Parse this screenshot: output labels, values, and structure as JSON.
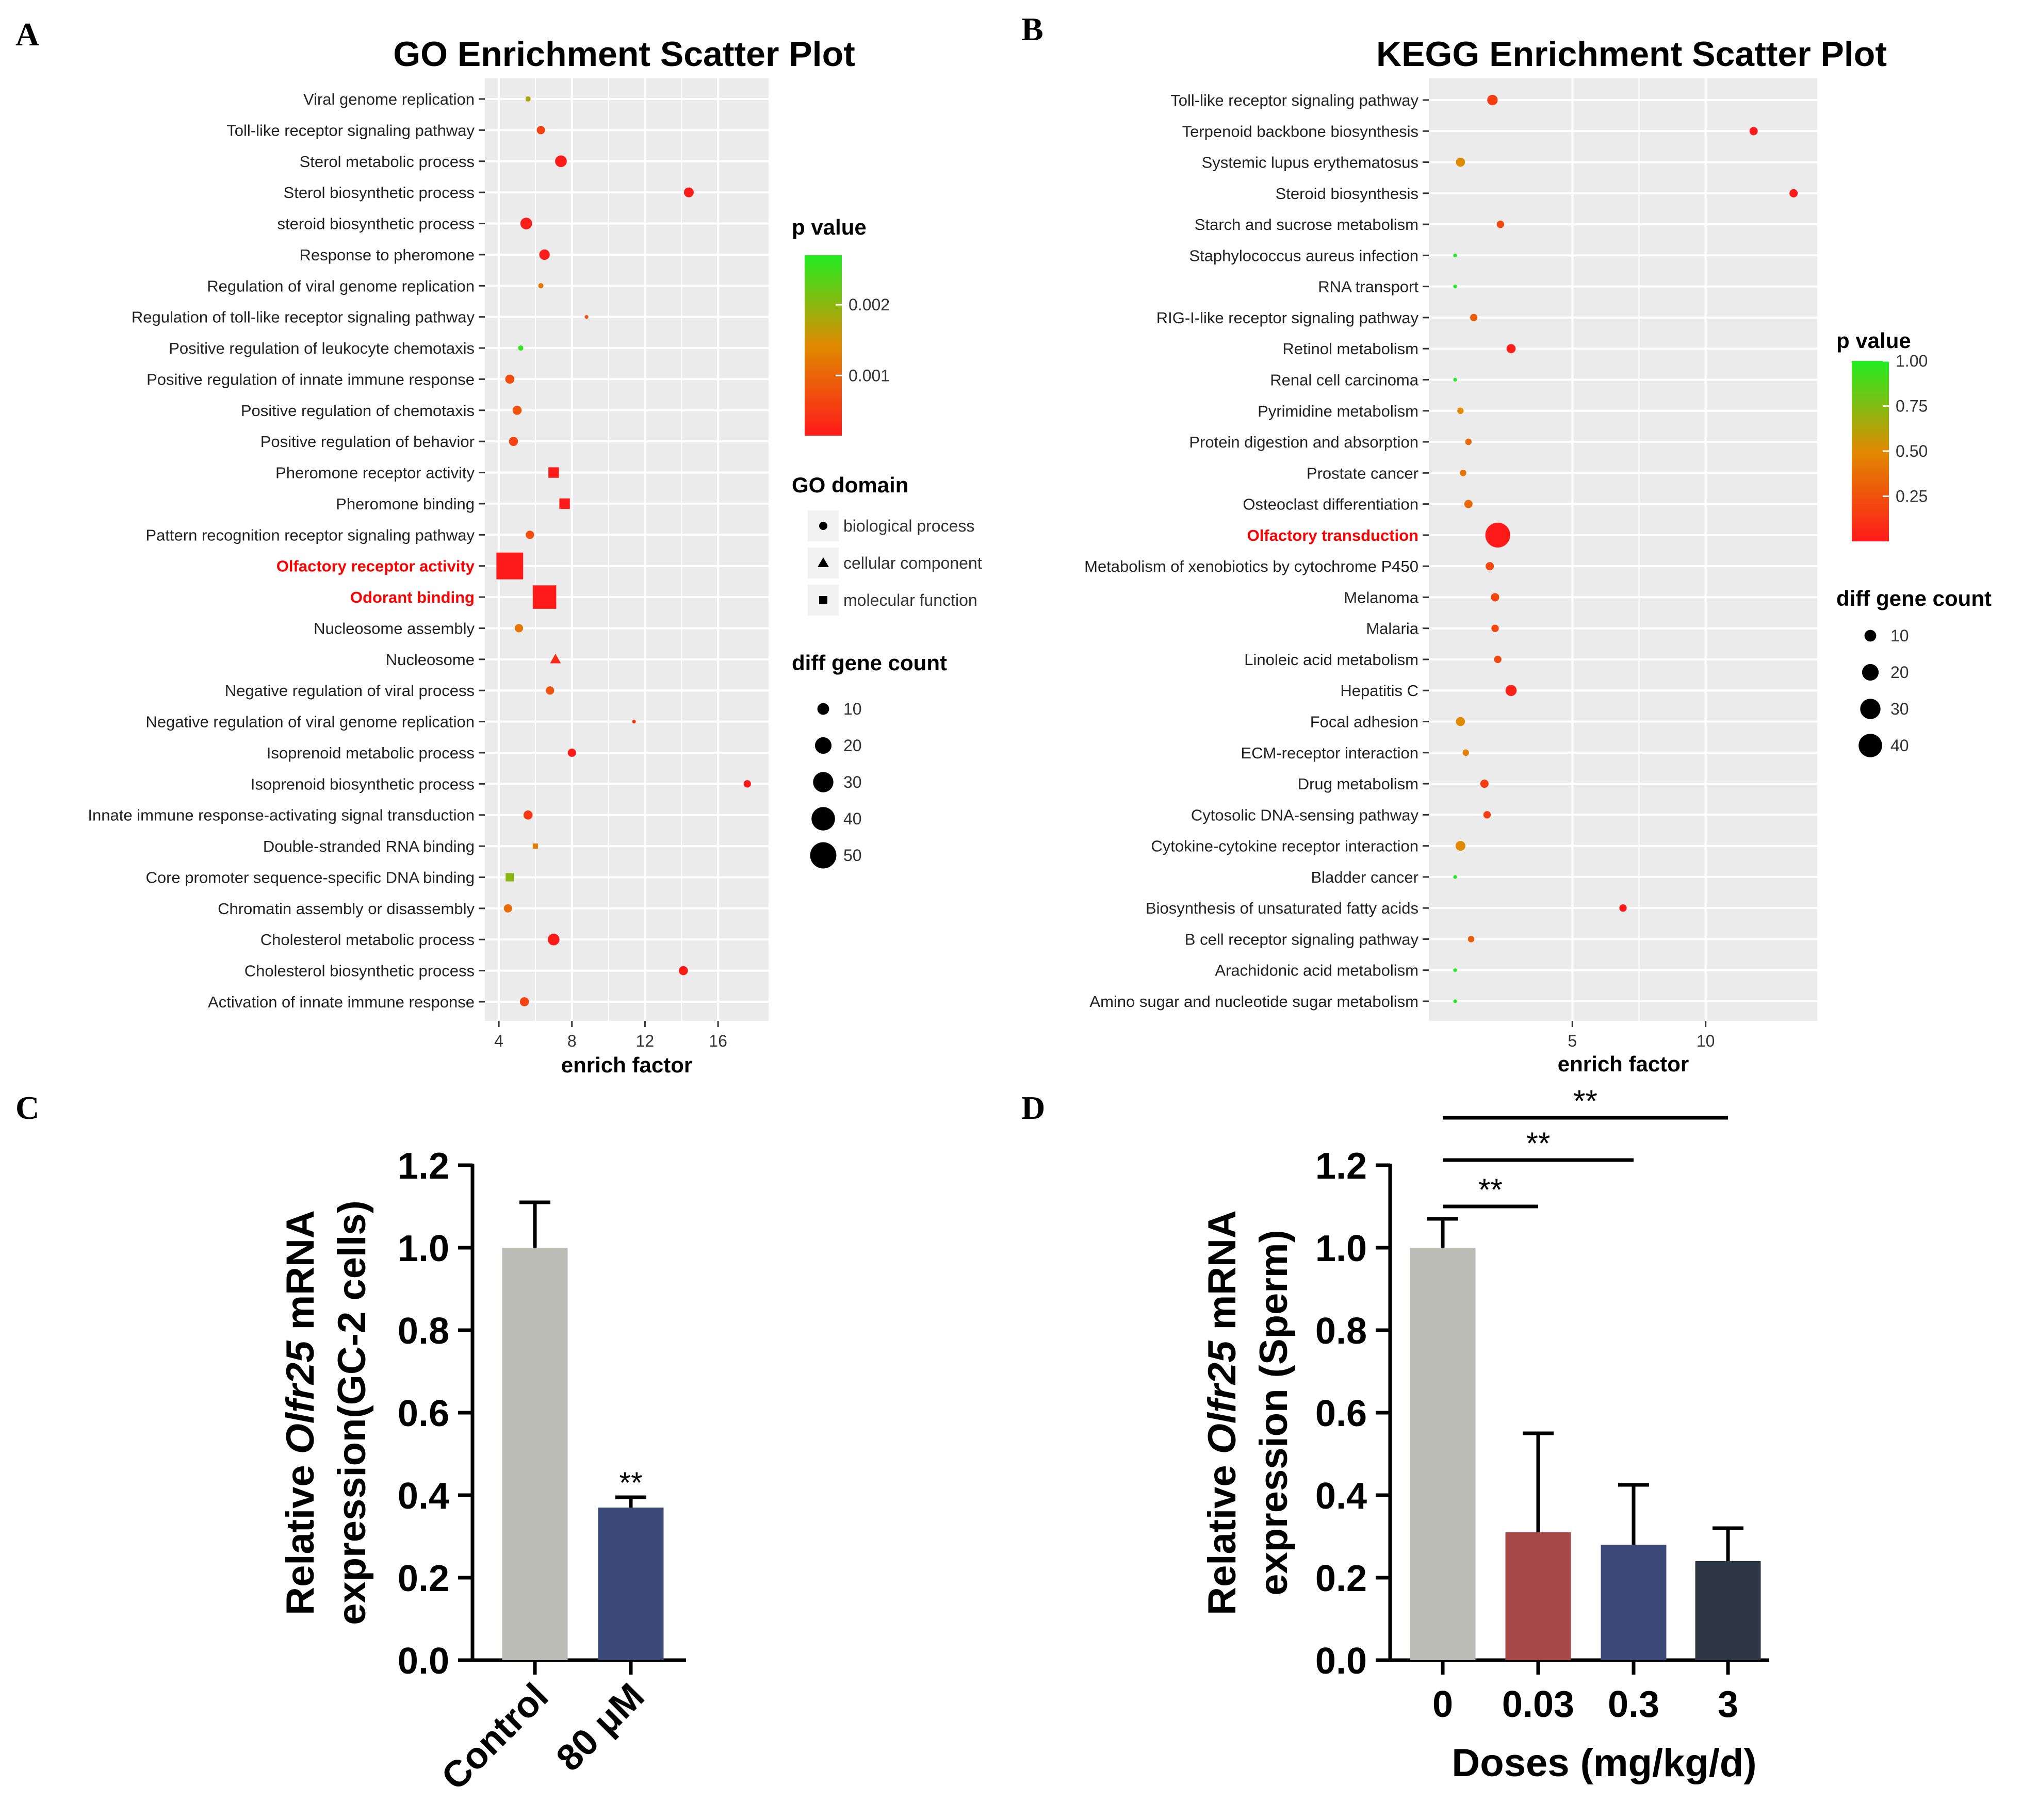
{
  "panel_labels": {
    "a": "A",
    "b": "B",
    "c": "C",
    "d": "D"
  },
  "colors": {
    "panel_bg": "#ebebeb",
    "grid": "#ffffff",
    "pv_low": "#ff1a1a",
    "pv_mid": "#e08a00",
    "pv_high": "#22ee22",
    "label_highlight": "#ff0000",
    "bar_grey": "#bcbcb6",
    "bar_navy": "#3c4a7a",
    "bar_red": "#a84848",
    "bar_dark": "#2e3844"
  },
  "chart_data": [
    {
      "id": "go",
      "type": "scatter",
      "title": "GO Enrichment Scatter Plot",
      "xlabel": "enrich factor",
      "xlim": [
        3.8,
        18.2
      ],
      "xticks": [
        4,
        8,
        12,
        16
      ],
      "grid": true,
      "legend_placement": "right",
      "pvalue_legend": {
        "title": "p value",
        "range": [
          0.00015,
          0.0027
        ],
        "ticks": [
          {
            "value": 0.002,
            "label": "0.002"
          },
          {
            "value": 0.001,
            "label": "0.001"
          }
        ]
      },
      "domain_legend": {
        "title": "GO domain",
        "items": [
          {
            "shape": "circle",
            "label": "biological process"
          },
          {
            "shape": "triangle",
            "label": "cellular component"
          },
          {
            "shape": "square",
            "label": "molecular function"
          }
        ]
      },
      "size_legend": {
        "title": "diff gene count",
        "values": [
          10,
          20,
          30,
          40,
          50
        ]
      },
      "terms": [
        {
          "label": "Viral genome replication",
          "enrich": 5.6,
          "p": 0.0018,
          "count": 2,
          "shape": "circle",
          "highlight": false
        },
        {
          "label": "Toll-like receptor signaling pathway",
          "enrich": 6.3,
          "p": 0.0006,
          "count": 5,
          "shape": "circle",
          "highlight": false
        },
        {
          "label": "Sterol metabolic process",
          "enrich": 7.4,
          "p": 0.0001,
          "count": 10,
          "shape": "circle",
          "highlight": false
        },
        {
          "label": "Sterol biosynthetic process",
          "enrich": 14.4,
          "p": 0.0001,
          "count": 7,
          "shape": "circle",
          "highlight": false
        },
        {
          "label": "steroid biosynthetic process",
          "enrich": 5.5,
          "p": 0.0002,
          "count": 10,
          "shape": "circle",
          "highlight": false
        },
        {
          "label": "Response to pheromone",
          "enrich": 6.5,
          "p": 0.0002,
          "count": 8,
          "shape": "circle",
          "highlight": false
        },
        {
          "label": "Regulation of viral genome replication",
          "enrich": 6.3,
          "p": 0.0012,
          "count": 2,
          "shape": "circle",
          "highlight": false
        },
        {
          "label": "Regulation of toll-like receptor signaling pathway",
          "enrich": 8.8,
          "p": 0.0008,
          "count": 1,
          "shape": "circle",
          "highlight": false
        },
        {
          "label": "Positive regulation of leukocyte chemotaxis",
          "enrich": 5.2,
          "p": 0.0026,
          "count": 2,
          "shape": "circle",
          "highlight": false
        },
        {
          "label": "Positive regulation of innate immune response",
          "enrich": 4.6,
          "p": 0.0007,
          "count": 6,
          "shape": "circle",
          "highlight": false
        },
        {
          "label": "Positive regulation of chemotaxis",
          "enrich": 5.0,
          "p": 0.0008,
          "count": 6,
          "shape": "circle",
          "highlight": false
        },
        {
          "label": "Positive regulation of behavior",
          "enrich": 4.8,
          "p": 0.0006,
          "count": 6,
          "shape": "circle",
          "highlight": false
        },
        {
          "label": "Pheromone receptor activity",
          "enrich": 7.0,
          "p": 0.0001,
          "count": 8,
          "shape": "square",
          "highlight": false
        },
        {
          "label": "Pheromone binding",
          "enrich": 7.6,
          "p": 0.0001,
          "count": 8,
          "shape": "square",
          "highlight": false
        },
        {
          "label": "Pattern recognition receptor signaling pathway",
          "enrich": 5.7,
          "p": 0.0007,
          "count": 5,
          "shape": "circle",
          "highlight": false
        },
        {
          "label": "Olfactory receptor activity",
          "enrich": 4.6,
          "p": 0.0001,
          "count": 52,
          "shape": "square",
          "highlight": true
        },
        {
          "label": "Odorant binding",
          "enrich": 6.5,
          "p": 0.0001,
          "count": 40,
          "shape": "square",
          "highlight": true
        },
        {
          "label": "Nucleosome assembly",
          "enrich": 5.1,
          "p": 0.0012,
          "count": 5,
          "shape": "circle",
          "highlight": false
        },
        {
          "label": "Nucleosome",
          "enrich": 7.1,
          "p": 0.0003,
          "count": 7,
          "shape": "triangle",
          "highlight": false
        },
        {
          "label": "Negative regulation of viral process",
          "enrich": 6.8,
          "p": 0.0008,
          "count": 5,
          "shape": "circle",
          "highlight": false
        },
        {
          "label": "Negative regulation of viral genome replication",
          "enrich": 11.4,
          "p": 0.0005,
          "count": 1,
          "shape": "circle",
          "highlight": false
        },
        {
          "label": "Isoprenoid metabolic process",
          "enrich": 8.0,
          "p": 0.0001,
          "count": 5,
          "shape": "circle",
          "highlight": false
        },
        {
          "label": "Isoprenoid biosynthetic process",
          "enrich": 17.6,
          "p": 0.0001,
          "count": 4,
          "shape": "circle",
          "highlight": false
        },
        {
          "label": "Innate immune response-activating signal transduction",
          "enrich": 5.6,
          "p": 0.0005,
          "count": 6,
          "shape": "circle",
          "highlight": false
        },
        {
          "label": "Double-stranded RNA binding",
          "enrich": 6.0,
          "p": 0.0013,
          "count": 2,
          "shape": "square",
          "highlight": false
        },
        {
          "label": "Core promoter sequence-specific DNA binding",
          "enrich": 4.6,
          "p": 0.002,
          "count": 5,
          "shape": "square",
          "highlight": false
        },
        {
          "label": "Chromatin assembly or disassembly",
          "enrich": 4.5,
          "p": 0.0011,
          "count": 5,
          "shape": "circle",
          "highlight": false
        },
        {
          "label": "Cholesterol metabolic process",
          "enrich": 7.0,
          "p": 0.0001,
          "count": 10,
          "shape": "circle",
          "highlight": false
        },
        {
          "label": "Cholesterol biosynthetic process",
          "enrich": 14.1,
          "p": 0.0001,
          "count": 6,
          "shape": "circle",
          "highlight": false
        },
        {
          "label": "Activation of innate immune response",
          "enrich": 5.4,
          "p": 0.0006,
          "count": 6,
          "shape": "circle",
          "highlight": false
        }
      ]
    },
    {
      "id": "kegg",
      "type": "scatter",
      "title": "KEGG Enrichment Scatter Plot",
      "xlabel": "enrich factor",
      "xlim": [
        0.0,
        13.8
      ],
      "xticks": [
        5,
        10
      ],
      "grid": true,
      "legend_placement": "right",
      "pvalue_legend": {
        "title": "p value",
        "range": [
          0.0,
          1.0
        ],
        "ticks": [
          {
            "value": 1.0,
            "label": "1.00"
          },
          {
            "value": 0.75,
            "label": "0.75"
          },
          {
            "value": 0.5,
            "label": "0.50"
          },
          {
            "value": 0.25,
            "label": "0.25"
          }
        ]
      },
      "size_legend": {
        "title": "diff gene count",
        "values": [
          10,
          20,
          30,
          40
        ]
      },
      "terms": [
        {
          "label": "Toll-like receptor signaling pathway",
          "enrich": 2.0,
          "p": 0.15,
          "count": 8,
          "highlight": false
        },
        {
          "label": "Terpenoid backbone biosynthesis",
          "enrich": 11.8,
          "p": 0.0,
          "count": 5,
          "highlight": false
        },
        {
          "label": "Systemic lupus erythematosus",
          "enrich": 0.8,
          "p": 0.5,
          "count": 6,
          "highlight": false
        },
        {
          "label": "Steroid biosynthesis",
          "enrich": 13.3,
          "p": 0.0,
          "count": 5,
          "highlight": false
        },
        {
          "label": "Starch and sucrose metabolism",
          "enrich": 2.3,
          "p": 0.2,
          "count": 4,
          "highlight": false
        },
        {
          "label": "Staphylococcus aureus infection",
          "enrich": 0.6,
          "p": 1.0,
          "count": 1,
          "highlight": false
        },
        {
          "label": "RNA transport",
          "enrich": 0.6,
          "p": 1.0,
          "count": 1,
          "highlight": false
        },
        {
          "label": "RIG-I-like receptor signaling pathway",
          "enrich": 1.3,
          "p": 0.3,
          "count": 4,
          "highlight": false
        },
        {
          "label": "Retinol metabolism",
          "enrich": 2.7,
          "p": 0.02,
          "count": 6,
          "highlight": false
        },
        {
          "label": "Renal cell carcinoma",
          "enrich": 0.6,
          "p": 1.0,
          "count": 1,
          "highlight": false
        },
        {
          "label": "Pyrimidine metabolism",
          "enrich": 0.8,
          "p": 0.5,
          "count": 3,
          "highlight": false
        },
        {
          "label": "Protein digestion and absorption",
          "enrich": 1.1,
          "p": 0.35,
          "count": 3,
          "highlight": false
        },
        {
          "label": "Prostate cancer",
          "enrich": 0.9,
          "p": 0.4,
          "count": 3,
          "highlight": false
        },
        {
          "label": "Osteoclast differentiation",
          "enrich": 1.1,
          "p": 0.35,
          "count": 5,
          "highlight": false
        },
        {
          "label": "Olfactory transduction",
          "enrich": 2.2,
          "p": 0.0,
          "count": 45,
          "highlight": true
        },
        {
          "label": "Metabolism of xenobiotics by cytochrome P450",
          "enrich": 1.9,
          "p": 0.2,
          "count": 5,
          "highlight": false
        },
        {
          "label": "Melanoma",
          "enrich": 2.1,
          "p": 0.2,
          "count": 5,
          "highlight": false
        },
        {
          "label": "Malaria",
          "enrich": 2.1,
          "p": 0.2,
          "count": 4,
          "highlight": false
        },
        {
          "label": "Linoleic acid metabolism",
          "enrich": 2.2,
          "p": 0.2,
          "count": 4,
          "highlight": false
        },
        {
          "label": "Hepatitis C",
          "enrich": 2.7,
          "p": 0.03,
          "count": 9,
          "highlight": false
        },
        {
          "label": "Focal adhesion",
          "enrich": 0.8,
          "p": 0.5,
          "count": 6,
          "highlight": false
        },
        {
          "label": "ECM-receptor interaction",
          "enrich": 1.0,
          "p": 0.45,
          "count": 3,
          "highlight": false
        },
        {
          "label": "Drug metabolism",
          "enrich": 1.7,
          "p": 0.15,
          "count": 5,
          "highlight": false
        },
        {
          "label": "Cytosolic DNA-sensing pathway",
          "enrich": 1.8,
          "p": 0.15,
          "count": 4,
          "highlight": false
        },
        {
          "label": "Cytokine-cytokine receptor interaction",
          "enrich": 0.8,
          "p": 0.5,
          "count": 7,
          "highlight": false
        },
        {
          "label": "Bladder cancer",
          "enrich": 0.6,
          "p": 1.0,
          "count": 1,
          "highlight": false
        },
        {
          "label": "Biosynthesis of unsaturated fatty acids",
          "enrich": 6.9,
          "p": 0.0,
          "count": 4,
          "highlight": false
        },
        {
          "label": "B cell receptor signaling pathway",
          "enrich": 1.2,
          "p": 0.3,
          "count": 3,
          "highlight": false
        },
        {
          "label": "Arachidonic acid metabolism",
          "enrich": 0.6,
          "p": 1.0,
          "count": 1,
          "highlight": false
        },
        {
          "label": "Amino sugar and nucleotide sugar metabolism",
          "enrich": 0.6,
          "p": 1.0,
          "count": 1,
          "highlight": false
        }
      ]
    },
    {
      "id": "c",
      "type": "bar",
      "ylabel_prefix": "Relative ",
      "ylabel_gene": "Olfr25",
      "ylabel_suffix": " mRNA",
      "ylabel_line2": "expression(GC-2 cells)",
      "ylim": [
        0,
        1.2
      ],
      "yticks": [
        "0.0",
        "0.2",
        "0.4",
        "0.6",
        "0.8",
        "1.0",
        "1.2"
      ],
      "categories": [
        "Control",
        "80 μM"
      ],
      "values": [
        1.0,
        0.37
      ],
      "errors": [
        0.11,
        0.025
      ],
      "significance": [
        "",
        "**"
      ]
    },
    {
      "id": "d",
      "type": "bar",
      "ylabel_prefix": "Relative ",
      "ylabel_gene": "Olfr25",
      "ylabel_suffix": " mRNA",
      "ylabel_line2": "expression (Sperm)",
      "xlabel": "Doses (mg/kg/d)",
      "ylim": [
        0,
        1.2
      ],
      "yticks": [
        "0.0",
        "0.2",
        "0.4",
        "0.6",
        "0.8",
        "1.0",
        "1.2"
      ],
      "categories": [
        "0",
        "0.03",
        "0.3",
        "3"
      ],
      "values": [
        1.0,
        0.31,
        0.28,
        0.24
      ],
      "errors": [
        0.07,
        0.24,
        0.145,
        0.08
      ],
      "comparisons": [
        {
          "from": 0,
          "to": 1,
          "label": "**"
        },
        {
          "from": 0,
          "to": 2,
          "label": "**"
        },
        {
          "from": 0,
          "to": 3,
          "label": "**"
        }
      ]
    }
  ]
}
